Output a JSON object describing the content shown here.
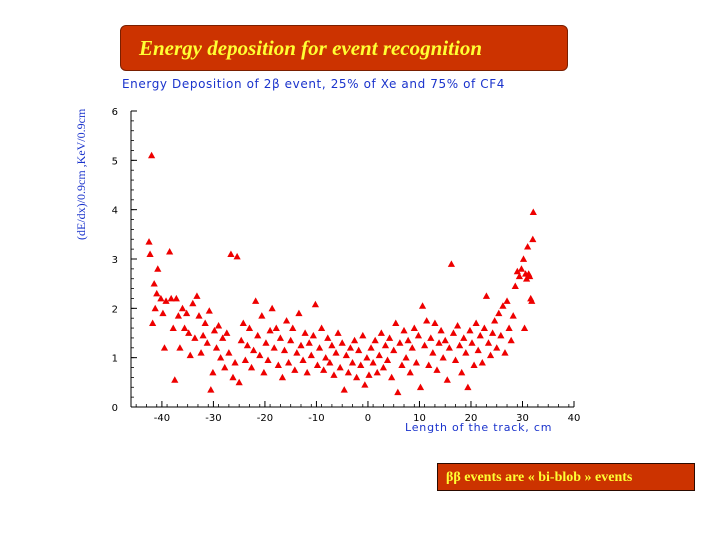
{
  "slide": {
    "title": "Energy deposition for event recognition",
    "footer_note": "ββ events are « bi-blob » events"
  },
  "colors": {
    "title_bg": "#cc3300",
    "title_text": "#ffff33",
    "axis_text": "#1a33cc",
    "marker": "#ee0000"
  },
  "chart_data": {
    "type": "scatter",
    "title": "Energy Deposition of 2β event, 25% of Xe and 75% of CF4",
    "xlabel": "Length of the track, cm",
    "ylabel": "(dE/dx)/0.9cm ,KeV/0.9cm",
    "xlim": [
      -46,
      40
    ],
    "ylim": [
      0,
      6
    ],
    "xticks": [
      -40,
      -30,
      -20,
      -10,
      0,
      10,
      20,
      30,
      40
    ],
    "yticks": [
      0,
      1,
      2,
      3,
      4,
      5,
      6
    ],
    "marker": "triangle",
    "grid": false,
    "points": [
      [
        -42.0,
        5.1
      ],
      [
        -42.5,
        3.35
      ],
      [
        -42.3,
        3.1
      ],
      [
        -41.5,
        2.5
      ],
      [
        -41.0,
        2.3
      ],
      [
        -41.3,
        2.0
      ],
      [
        -41.8,
        1.7
      ],
      [
        -40.8,
        2.8
      ],
      [
        -40.2,
        2.2
      ],
      [
        -39.8,
        1.9
      ],
      [
        -39.5,
        1.2
      ],
      [
        -39.2,
        2.15
      ],
      [
        -38.5,
        3.15
      ],
      [
        -38.2,
        2.2
      ],
      [
        -37.8,
        1.6
      ],
      [
        -37.5,
        0.55
      ],
      [
        -37.2,
        2.2
      ],
      [
        -36.8,
        1.85
      ],
      [
        -36.5,
        1.2
      ],
      [
        -36.0,
        2.0
      ],
      [
        -35.6,
        1.6
      ],
      [
        -35.2,
        1.9
      ],
      [
        -34.8,
        1.5
      ],
      [
        -34.5,
        1.05
      ],
      [
        -34.0,
        2.1
      ],
      [
        -33.6,
        1.4
      ],
      [
        -33.2,
        2.25
      ],
      [
        -32.8,
        1.85
      ],
      [
        -32.4,
        1.1
      ],
      [
        -32.0,
        1.45
      ],
      [
        -31.6,
        1.7
      ],
      [
        -31.2,
        1.3
      ],
      [
        -30.8,
        1.95
      ],
      [
        -30.5,
        0.35
      ],
      [
        -30.1,
        0.7
      ],
      [
        -29.8,
        1.55
      ],
      [
        -29.4,
        1.2
      ],
      [
        -29.0,
        1.65
      ],
      [
        -28.6,
        1.0
      ],
      [
        -28.2,
        1.4
      ],
      [
        -27.8,
        0.8
      ],
      [
        -27.4,
        1.5
      ],
      [
        -27.0,
        1.1
      ],
      [
        -26.6,
        3.1
      ],
      [
        -26.2,
        0.6
      ],
      [
        -25.8,
        0.9
      ],
      [
        -25.4,
        3.05
      ],
      [
        -25.0,
        0.5
      ],
      [
        -24.6,
        1.35
      ],
      [
        -24.2,
        1.7
      ],
      [
        -23.8,
        0.95
      ],
      [
        -23.4,
        1.25
      ],
      [
        -23.0,
        1.6
      ],
      [
        -22.6,
        0.8
      ],
      [
        -22.2,
        1.15
      ],
      [
        -21.8,
        2.15
      ],
      [
        -21.4,
        1.45
      ],
      [
        -21.0,
        1.05
      ],
      [
        -20.6,
        1.85
      ],
      [
        -20.2,
        0.7
      ],
      [
        -19.8,
        1.3
      ],
      [
        -19.4,
        0.95
      ],
      [
        -19.0,
        1.55
      ],
      [
        -18.6,
        2.0
      ],
      [
        -18.2,
        1.2
      ],
      [
        -17.8,
        1.6
      ],
      [
        -17.4,
        0.85
      ],
      [
        -17.0,
        1.4
      ],
      [
        -16.6,
        0.6
      ],
      [
        -16.2,
        1.15
      ],
      [
        -15.8,
        1.75
      ],
      [
        -15.4,
        0.9
      ],
      [
        -15.0,
        1.35
      ],
      [
        -14.6,
        1.6
      ],
      [
        -14.2,
        0.75
      ],
      [
        -13.8,
        1.1
      ],
      [
        -13.4,
        1.9
      ],
      [
        -13.0,
        1.25
      ],
      [
        -12.6,
        0.95
      ],
      [
        -12.2,
        1.5
      ],
      [
        -11.8,
        0.7
      ],
      [
        -11.4,
        1.3
      ],
      [
        -11.0,
        1.05
      ],
      [
        -10.6,
        1.45
      ],
      [
        -10.2,
        2.08
      ],
      [
        -9.8,
        0.85
      ],
      [
        -9.4,
        1.2
      ],
      [
        -9.0,
        1.6
      ],
      [
        -8.6,
        0.75
      ],
      [
        -8.2,
        1.0
      ],
      [
        -7.8,
        1.4
      ],
      [
        -7.4,
        0.9
      ],
      [
        -7.0,
        1.25
      ],
      [
        -6.6,
        0.65
      ],
      [
        -6.2,
        1.1
      ],
      [
        -5.8,
        1.5
      ],
      [
        -5.4,
        0.8
      ],
      [
        -5.0,
        1.3
      ],
      [
        -4.6,
        0.35
      ],
      [
        -4.2,
        1.05
      ],
      [
        -3.8,
        0.7
      ],
      [
        -3.4,
        1.2
      ],
      [
        -3.0,
        0.9
      ],
      [
        -2.6,
        1.35
      ],
      [
        -2.2,
        0.6
      ],
      [
        -1.8,
        1.15
      ],
      [
        -1.4,
        0.85
      ],
      [
        -1.0,
        1.45
      ],
      [
        -0.6,
        0.45
      ],
      [
        -0.2,
        1.0
      ],
      [
        0.2,
        0.65
      ],
      [
        0.6,
        1.2
      ],
      [
        1.0,
        0.9
      ],
      [
        1.4,
        1.35
      ],
      [
        1.8,
        0.7
      ],
      [
        2.2,
        1.05
      ],
      [
        2.6,
        1.5
      ],
      [
        3.0,
        0.8
      ],
      [
        3.4,
        1.25
      ],
      [
        3.8,
        0.95
      ],
      [
        4.2,
        1.4
      ],
      [
        4.6,
        0.6
      ],
      [
        5.0,
        1.15
      ],
      [
        5.4,
        1.7
      ],
      [
        5.8,
        0.3
      ],
      [
        6.2,
        1.3
      ],
      [
        6.6,
        0.85
      ],
      [
        7.0,
        1.55
      ],
      [
        7.4,
        1.0
      ],
      [
        7.8,
        1.35
      ],
      [
        8.2,
        0.7
      ],
      [
        8.6,
        1.2
      ],
      [
        9.0,
        1.6
      ],
      [
        9.4,
        0.9
      ],
      [
        9.8,
        1.45
      ],
      [
        10.2,
        0.4
      ],
      [
        10.6,
        2.05
      ],
      [
        11.0,
        1.25
      ],
      [
        11.4,
        1.75
      ],
      [
        11.8,
        0.85
      ],
      [
        12.2,
        1.4
      ],
      [
        12.6,
        1.1
      ],
      [
        13.0,
        1.7
      ],
      [
        13.4,
        0.75
      ],
      [
        13.8,
        1.3
      ],
      [
        14.2,
        1.55
      ],
      [
        14.6,
        1.0
      ],
      [
        15.0,
        1.35
      ],
      [
        15.4,
        0.55
      ],
      [
        15.8,
        1.2
      ],
      [
        16.2,
        2.9
      ],
      [
        16.6,
        1.5
      ],
      [
        17.0,
        0.95
      ],
      [
        17.4,
        1.65
      ],
      [
        17.8,
        1.25
      ],
      [
        18.2,
        0.7
      ],
      [
        18.6,
        1.4
      ],
      [
        19.0,
        1.1
      ],
      [
        19.4,
        0.4
      ],
      [
        19.8,
        1.55
      ],
      [
        20.2,
        1.3
      ],
      [
        20.6,
        0.85
      ],
      [
        21.0,
        1.7
      ],
      [
        21.4,
        1.15
      ],
      [
        21.8,
        1.45
      ],
      [
        22.2,
        0.9
      ],
      [
        22.6,
        1.6
      ],
      [
        23.0,
        2.25
      ],
      [
        23.4,
        1.3
      ],
      [
        23.8,
        1.05
      ],
      [
        24.2,
        1.5
      ],
      [
        24.6,
        1.75
      ],
      [
        25.0,
        1.2
      ],
      [
        25.4,
        1.9
      ],
      [
        25.8,
        1.45
      ],
      [
        26.2,
        2.05
      ],
      [
        26.6,
        1.1
      ],
      [
        27.0,
        2.15
      ],
      [
        27.4,
        1.6
      ],
      [
        27.8,
        1.35
      ],
      [
        28.2,
        1.85
      ],
      [
        28.6,
        2.45
      ],
      [
        29.0,
        2.75
      ],
      [
        29.4,
        2.65
      ],
      [
        29.8,
        2.8
      ],
      [
        30.2,
        3.0
      ],
      [
        30.4,
        1.6
      ],
      [
        30.6,
        2.7
      ],
      [
        30.8,
        2.6
      ],
      [
        31.0,
        3.25
      ],
      [
        31.2,
        2.7
      ],
      [
        31.4,
        2.65
      ],
      [
        31.6,
        2.2
      ],
      [
        31.8,
        2.15
      ],
      [
        32.0,
        3.4
      ],
      [
        32.1,
        3.95
      ]
    ]
  }
}
